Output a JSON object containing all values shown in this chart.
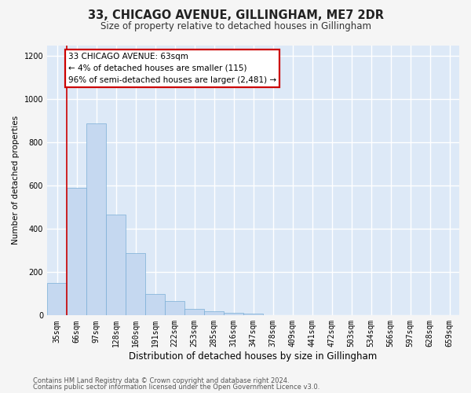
{
  "title1": "33, CHICAGO AVENUE, GILLINGHAM, ME7 2DR",
  "title2": "Size of property relative to detached houses in Gillingham",
  "xlabel": "Distribution of detached houses by size in Gillingham",
  "ylabel": "Number of detached properties",
  "categories": [
    "35sqm",
    "66sqm",
    "97sqm",
    "128sqm",
    "160sqm",
    "191sqm",
    "222sqm",
    "253sqm",
    "285sqm",
    "316sqm",
    "347sqm",
    "378sqm",
    "409sqm",
    "441sqm",
    "472sqm",
    "503sqm",
    "534sqm",
    "566sqm",
    "597sqm",
    "628sqm",
    "659sqm"
  ],
  "values": [
    150,
    590,
    890,
    465,
    290,
    100,
    65,
    30,
    20,
    13,
    10,
    0,
    0,
    0,
    0,
    0,
    0,
    0,
    0,
    0,
    0
  ],
  "bar_color": "#c5d8f0",
  "bar_edge_color": "#7aaed6",
  "bg_color": "#dde9f7",
  "grid_color": "#ffffff",
  "annotation_line1": "33 CHICAGO AVENUE: 63sqm",
  "annotation_line2": "← 4% of detached houses are smaller (115)",
  "annotation_line3": "96% of semi-detached houses are larger (2,481) →",
  "annotation_box_facecolor": "#ffffff",
  "annotation_box_edgecolor": "#cc0000",
  "vline_color": "#cc0000",
  "vline_x": 0.5,
  "ylim": [
    0,
    1250
  ],
  "yticks": [
    0,
    200,
    400,
    600,
    800,
    1000,
    1200
  ],
  "footer1": "Contains HM Land Registry data © Crown copyright and database right 2024.",
  "footer2": "Contains public sector information licensed under the Open Government Licence v3.0.",
  "fig_facecolor": "#f5f5f5",
  "title1_fontsize": 10.5,
  "title2_fontsize": 8.5,
  "ylabel_fontsize": 7.5,
  "xlabel_fontsize": 8.5,
  "tick_fontsize": 7,
  "annotation_fontsize": 7.5,
  "footer_fontsize": 6
}
